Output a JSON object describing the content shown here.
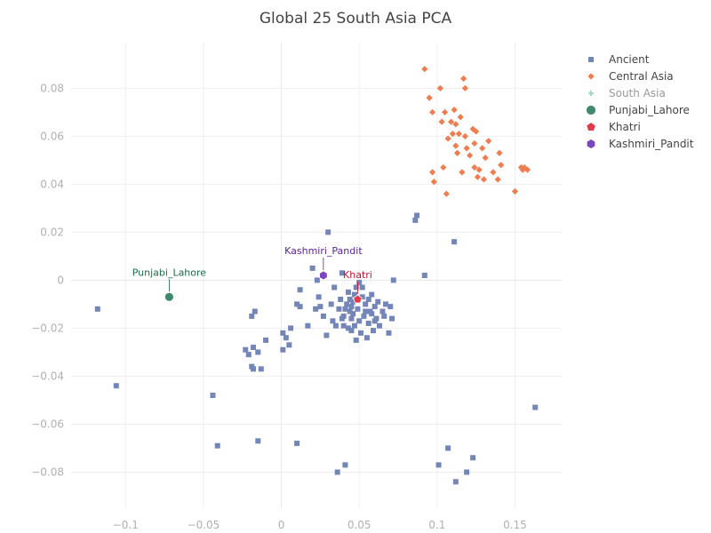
{
  "chart_data": {
    "type": "scatter",
    "title": "Global 25 South Asia PCA",
    "xlabel": "",
    "ylabel": "",
    "xlim": [
      -0.135,
      0.18
    ],
    "ylim": [
      -0.095,
      0.099
    ],
    "x_ticks": [
      -0.1,
      -0.05,
      0,
      0.05,
      0.1,
      0.15
    ],
    "x_tick_labels": [
      "−0.1",
      "−0.05",
      "0",
      "0.05",
      "0.1",
      "0.15"
    ],
    "y_ticks": [
      -0.08,
      -0.06,
      -0.04,
      -0.02,
      0,
      0.02,
      0.04,
      0.06,
      0.08
    ],
    "y_tick_labels": [
      "−0.08",
      "−0.06",
      "−0.04",
      "−0.02",
      "0",
      "0.02",
      "0.04",
      "0.06",
      "0.08"
    ],
    "grid": true,
    "legend_position": "top-right",
    "series": [
      {
        "name": "Ancient",
        "marker": "square",
        "color": "#7486b8",
        "points": [
          [
            -0.118,
            -0.012
          ],
          [
            -0.106,
            -0.044
          ],
          [
            -0.044,
            -0.048
          ],
          [
            -0.041,
            -0.069
          ],
          [
            -0.023,
            -0.029
          ],
          [
            -0.021,
            -0.031
          ],
          [
            -0.019,
            -0.036
          ],
          [
            -0.018,
            -0.037
          ],
          [
            -0.018,
            -0.028
          ],
          [
            -0.019,
            -0.015
          ],
          [
            -0.017,
            -0.013
          ],
          [
            -0.015,
            -0.03
          ],
          [
            -0.013,
            -0.037
          ],
          [
            -0.01,
            -0.025
          ],
          [
            -0.015,
            -0.067
          ],
          [
            0.001,
            -0.022
          ],
          [
            0.003,
            -0.024
          ],
          [
            0.001,
            -0.029
          ],
          [
            0.005,
            -0.027
          ],
          [
            0.006,
            -0.02
          ],
          [
            0.01,
            -0.01
          ],
          [
            0.012,
            -0.011
          ],
          [
            0.012,
            -0.004
          ],
          [
            0.01,
            -0.068
          ],
          [
            0.017,
            -0.019
          ],
          [
            0.02,
            0.005
          ],
          [
            0.022,
            -0.012
          ],
          [
            0.023,
            0.0
          ],
          [
            0.024,
            -0.007
          ],
          [
            0.025,
            -0.011
          ],
          [
            0.027,
            -0.015
          ],
          [
            0.029,
            -0.023
          ],
          [
            0.03,
            0.02
          ],
          [
            0.032,
            -0.01
          ],
          [
            0.033,
            -0.017
          ],
          [
            0.034,
            -0.003
          ],
          [
            0.035,
            -0.019
          ],
          [
            0.036,
            -0.08
          ],
          [
            0.037,
            -0.012
          ],
          [
            0.038,
            -0.008
          ],
          [
            0.039,
            0.003
          ],
          [
            0.04,
            -0.019
          ],
          [
            0.04,
            -0.015
          ],
          [
            0.041,
            -0.077
          ],
          [
            0.042,
            -0.01
          ],
          [
            0.043,
            -0.005
          ],
          [
            0.044,
            -0.013
          ],
          [
            0.045,
            -0.021
          ],
          [
            0.045,
            -0.016
          ],
          [
            0.046,
            -0.009
          ],
          [
            0.047,
            -0.006
          ],
          [
            0.047,
            -0.019
          ],
          [
            0.048,
            -0.025
          ],
          [
            0.049,
            -0.012
          ],
          [
            0.05,
            -0.017
          ],
          [
            0.05,
            -0.001
          ],
          [
            0.051,
            -0.022
          ],
          [
            0.052,
            -0.007
          ],
          [
            0.053,
            -0.015
          ],
          [
            0.054,
            -0.01
          ],
          [
            0.055,
            -0.024
          ],
          [
            0.056,
            -0.018
          ],
          [
            0.057,
            -0.013
          ],
          [
            0.058,
            -0.006
          ],
          [
            0.059,
            -0.021
          ],
          [
            0.06,
            -0.011
          ],
          [
            0.061,
            -0.016
          ],
          [
            0.063,
            -0.019
          ],
          [
            0.065,
            -0.013
          ],
          [
            0.067,
            -0.01
          ],
          [
            0.069,
            -0.022
          ],
          [
            0.07,
            -0.011
          ],
          [
            0.071,
            -0.016
          ],
          [
            0.072,
            0.0
          ],
          [
            0.043,
            -0.02
          ],
          [
            0.045,
            -0.011
          ],
          [
            0.052,
            -0.003
          ],
          [
            0.054,
            -0.013
          ],
          [
            0.056,
            -0.008
          ],
          [
            0.058,
            -0.014
          ],
          [
            0.048,
            -0.003
          ],
          [
            0.046,
            -0.014
          ],
          [
            0.041,
            -0.012
          ],
          [
            0.039,
            -0.016
          ],
          [
            0.06,
            -0.017
          ],
          [
            0.062,
            -0.009
          ],
          [
            0.066,
            -0.015
          ],
          [
            0.044,
            -0.008
          ],
          [
            0.087,
            0.027
          ],
          [
            0.086,
            0.025
          ],
          [
            0.092,
            0.002
          ],
          [
            0.111,
            0.016
          ],
          [
            0.101,
            -0.077
          ],
          [
            0.107,
            -0.07
          ],
          [
            0.112,
            -0.084
          ],
          [
            0.119,
            -0.08
          ],
          [
            0.123,
            -0.074
          ],
          [
            0.163,
            -0.053
          ]
        ]
      },
      {
        "name": "Central Asia",
        "marker": "diamond",
        "color": "#ef7d4f",
        "points": [
          [
            0.092,
            0.088
          ],
          [
            0.095,
            0.076
          ],
          [
            0.097,
            0.07
          ],
          [
            0.097,
            0.045
          ],
          [
            0.098,
            0.041
          ],
          [
            0.102,
            0.08
          ],
          [
            0.103,
            0.066
          ],
          [
            0.104,
            0.047
          ],
          [
            0.105,
            0.07
          ],
          [
            0.106,
            0.036
          ],
          [
            0.107,
            0.059
          ],
          [
            0.109,
            0.066
          ],
          [
            0.11,
            0.061
          ],
          [
            0.111,
            0.071
          ],
          [
            0.112,
            0.065
          ],
          [
            0.112,
            0.056
          ],
          [
            0.113,
            0.053
          ],
          [
            0.114,
            0.061
          ],
          [
            0.115,
            0.068
          ],
          [
            0.116,
            0.045
          ],
          [
            0.117,
            0.084
          ],
          [
            0.118,
            0.08
          ],
          [
            0.118,
            0.06
          ],
          [
            0.119,
            0.055
          ],
          [
            0.121,
            0.052
          ],
          [
            0.123,
            0.063
          ],
          [
            0.124,
            0.057
          ],
          [
            0.125,
            0.062
          ],
          [
            0.126,
            0.043
          ],
          [
            0.127,
            0.046
          ],
          [
            0.129,
            0.055
          ],
          [
            0.13,
            0.042
          ],
          [
            0.131,
            0.051
          ],
          [
            0.133,
            0.058
          ],
          [
            0.136,
            0.045
          ],
          [
            0.139,
            0.042
          ],
          [
            0.14,
            0.053
          ],
          [
            0.141,
            0.048
          ],
          [
            0.15,
            0.037
          ],
          [
            0.154,
            0.047
          ],
          [
            0.155,
            0.046
          ],
          [
            0.156,
            0.047
          ],
          [
            0.158,
            0.046
          ],
          [
            0.124,
            0.047
          ]
        ]
      },
      {
        "name": "South Asia",
        "marker": "cross",
        "color": "#9fd8c8",
        "points": []
      },
      {
        "name": "Punjabi_Lahore",
        "marker": "circle",
        "color": "#3f8a6a",
        "points": [
          [
            -0.072,
            -0.007
          ]
        ]
      },
      {
        "name": "Khatri",
        "marker": "pentagon",
        "color": "#e23a4b",
        "points": [
          [
            0.049,
            -0.008
          ]
        ]
      },
      {
        "name": "Kashmiri_Pandit",
        "marker": "hexagon",
        "color": "#7b46c0",
        "points": [
          [
            0.027,
            0.002
          ]
        ]
      }
    ],
    "annotations": [
      {
        "text": "Punjabi_Lahore",
        "x": -0.072,
        "y": -0.007,
        "color": "#1f6b4a"
      },
      {
        "text": "Kashmiri_Pandit",
        "x": 0.027,
        "y": 0.002,
        "color": "#5a1f9a"
      },
      {
        "text": "Khatri",
        "x": 0.049,
        "y": -0.008,
        "color": "#c4122f"
      }
    ]
  }
}
